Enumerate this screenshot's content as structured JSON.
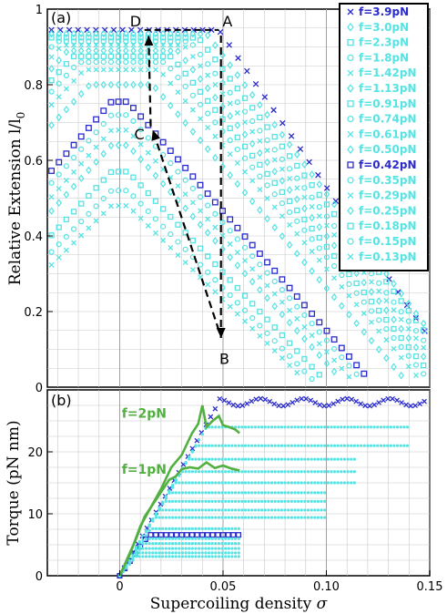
{
  "colors": {
    "highlight": "#2b2bcc",
    "cyan": "#55e3e3",
    "green": "#52b040",
    "grid": "#c8c8c8"
  },
  "chart_data": [
    {
      "type": "scatter",
      "panel_label": "(a)",
      "ylabel": "Relative Extension  l/l",
      "ylabel_sub": "0",
      "xlim": [
        -0.035,
        0.15
      ],
      "ylim": [
        0,
        1
      ],
      "y_ticks": [
        "0",
        "0.2",
        "0.4",
        "0.6",
        "0.8",
        "1"
      ],
      "y_tick_values": [
        0,
        0.2,
        0.4,
        0.6,
        0.8,
        1
      ],
      "legend_placement": "top-right",
      "grid": true,
      "legend": [
        {
          "label": "f=3.9pN",
          "marker": "x",
          "color": "#2b2bcc"
        },
        {
          "label": "f=3.0pN",
          "marker": "diamond",
          "color": "#55e3e3"
        },
        {
          "label": "f=2.3pN",
          "marker": "square",
          "color": "#55e3e3"
        },
        {
          "label": "f=1.8pN",
          "marker": "circle",
          "color": "#55e3e3"
        },
        {
          "label": "f=1.42pN",
          "marker": "x",
          "color": "#55e3e3"
        },
        {
          "label": "f=1.13pN",
          "marker": "diamond",
          "color": "#55e3e3"
        },
        {
          "label": "f=0.91pN",
          "marker": "square",
          "color": "#55e3e3"
        },
        {
          "label": "f=0.74pN",
          "marker": "circle",
          "color": "#55e3e3"
        },
        {
          "label": "f=0.61pN",
          "marker": "x",
          "color": "#55e3e3"
        },
        {
          "label": "f=0.50pN",
          "marker": "diamond",
          "color": "#55e3e3"
        },
        {
          "label": "f=0.42pN",
          "marker": "square",
          "color": "#2b2bcc"
        },
        {
          "label": "f=0.35pN",
          "marker": "circle",
          "color": "#55e3e3"
        },
        {
          "label": "f=0.29pN",
          "marker": "x",
          "color": "#55e3e3"
        },
        {
          "label": "f=0.25pN",
          "marker": "diamond",
          "color": "#55e3e3"
        },
        {
          "label": "f=0.18pN",
          "marker": "square",
          "color": "#55e3e3"
        },
        {
          "label": "f=0.15pN",
          "marker": "circle",
          "color": "#55e3e3"
        },
        {
          "label": "f=0.13pN",
          "marker": "x",
          "color": "#55e3e3"
        }
      ],
      "series": [
        {
          "name": "f=3.9pN",
          "peak": 0.945,
          "sigma_buckle": 0.048,
          "slope": 8.0,
          "width": 0.18
        },
        {
          "name": "f=3.0pN",
          "peak": 0.935,
          "sigma_buckle": 0.042,
          "slope": 7.3,
          "width": 0.14
        },
        {
          "name": "f=2.3pN",
          "peak": 0.925,
          "sigma_buckle": 0.038,
          "slope": 7.1,
          "width": 0.12
        },
        {
          "name": "f=1.8pN",
          "peak": 0.915,
          "sigma_buckle": 0.034,
          "slope": 7.0,
          "width": 0.1
        },
        {
          "name": "f=1.42pN",
          "peak": 0.905,
          "sigma_buckle": 0.031,
          "slope": 6.9,
          "width": 0.09
        },
        {
          "name": "f=1.13pN",
          "peak": 0.89,
          "sigma_buckle": 0.028,
          "slope": 6.8,
          "width": 0.08
        },
        {
          "name": "f=0.91pN",
          "peak": 0.875,
          "sigma_buckle": 0.025,
          "slope": 6.7,
          "width": 0.07
        },
        {
          "name": "f=0.74pN",
          "peak": 0.86,
          "sigma_buckle": 0.022,
          "slope": 6.6,
          "width": 0.06
        },
        {
          "name": "f=0.61pN",
          "peak": 0.84,
          "sigma_buckle": 0.019,
          "slope": 6.5,
          "width": 0.05
        },
        {
          "name": "f=0.50pN",
          "peak": 0.8,
          "sigma_buckle": 0.016,
          "slope": 6.4,
          "width": 0.043
        },
        {
          "name": "f=0.42pN",
          "peak": 0.755,
          "sigma_buckle": 0.0,
          "slope": 6.3,
          "width": 0.036
        },
        {
          "name": "f=0.35pN",
          "peak": 0.72,
          "sigma_buckle": 0.0,
          "slope": 6.2,
          "width": 0.032
        },
        {
          "name": "f=0.29pN",
          "peak": 0.68,
          "sigma_buckle": 0.0,
          "slope": 6.1,
          "width": 0.028
        },
        {
          "name": "f=0.25pN",
          "peak": 0.64,
          "sigma_buckle": 0.0,
          "slope": 6.0,
          "width": 0.025
        },
        {
          "name": "f=0.18pN",
          "peak": 0.57,
          "sigma_buckle": 0.0,
          "slope": 5.8,
          "width": 0.022
        },
        {
          "name": "f=0.15pN",
          "peak": 0.52,
          "sigma_buckle": 0.0,
          "slope": 5.6,
          "width": 0.02
        },
        {
          "name": "f=0.13pN",
          "peak": 0.48,
          "sigma_buckle": 0.0,
          "slope": 5.4,
          "width": 0.018
        }
      ],
      "annotations": [
        {
          "label": "A",
          "x": 0.048,
          "y": 0.945
        },
        {
          "label": "B",
          "x": 0.05,
          "y": 0.11
        },
        {
          "label": "C",
          "x": 0.015,
          "y": 0.67
        },
        {
          "label": "D",
          "x": 0.012,
          "y": 0.945
        }
      ],
      "path_D_to_A_top": [
        [
          0.012,
          0.945
        ],
        [
          0.048,
          0.945
        ]
      ],
      "arrows": [
        {
          "from": [
            0.049,
            0.93
          ],
          "to": [
            0.049,
            0.13
          ]
        },
        {
          "from": [
            0.048,
            0.15
          ],
          "to": [
            0.016,
            0.68
          ]
        },
        {
          "from": [
            0.015,
            0.69
          ],
          "to": [
            0.014,
            0.93
          ]
        }
      ]
    },
    {
      "type": "line",
      "panel_label": "(b)",
      "xlabel": "Supercoiling density",
      "xlabel_symbol": "σ",
      "ylabel": "Torque (pN nm)",
      "xlim": [
        -0.035,
        0.15
      ],
      "ylim": [
        0,
        30
      ],
      "x_ticks": [
        "0",
        "0.05",
        "0.10",
        "0.15"
      ],
      "x_tick_values": [
        0,
        0.05,
        0.1,
        0.15
      ],
      "y_ticks": [
        "0",
        "10",
        "20"
      ],
      "y_tick_values": [
        0,
        10,
        20
      ],
      "grid": true,
      "series_torque": [
        {
          "name": "f=3.9pN",
          "plateau": 28.0,
          "sigma_buckle": 0.048,
          "color": "#2b2bcc",
          "marker": "x"
        },
        {
          "name": "f=3.0pN",
          "plateau": 24.0,
          "sigma_buckle": 0.042,
          "color": "#55e3e3"
        },
        {
          "name": "f=2.3pN",
          "plateau": 21.0,
          "sigma_buckle": 0.037,
          "color": "#55e3e3"
        },
        {
          "name": "f=1.8pN",
          "plateau": 18.8,
          "sigma_buckle": 0.033,
          "color": "#55e3e3"
        },
        {
          "name": "f=1.42pN",
          "plateau": 16.8,
          "sigma_buckle": 0.03,
          "color": "#55e3e3"
        },
        {
          "name": "f=1.13pN",
          "plateau": 15.0,
          "sigma_buckle": 0.027,
          "color": "#55e3e3"
        },
        {
          "name": "f=0.91pN",
          "plateau": 13.4,
          "sigma_buckle": 0.024,
          "color": "#55e3e3"
        },
        {
          "name": "f=0.74pN",
          "plateau": 12.0,
          "sigma_buckle": 0.021,
          "color": "#55e3e3"
        },
        {
          "name": "f=0.61pN",
          "plateau": 10.6,
          "sigma_buckle": 0.019,
          "color": "#55e3e3"
        },
        {
          "name": "f=0.50pN",
          "plateau": 9.4,
          "sigma_buckle": 0.017,
          "color": "#55e3e3"
        },
        {
          "name": "f=0.42pN",
          "plateau": 6.6,
          "sigma_buckle": 0.014,
          "color": "#2b2bcc",
          "marker": "square"
        },
        {
          "name": "f=0.35pN",
          "plateau": 7.6,
          "sigma_buckle": 0.015,
          "color": "#55e3e3"
        },
        {
          "name": "f=0.29pN",
          "plateau": 6.0,
          "sigma_buckle": 0.013,
          "color": "#55e3e3"
        },
        {
          "name": "f=0.25pN",
          "plateau": 5.2,
          "sigma_buckle": 0.011,
          "color": "#55e3e3"
        },
        {
          "name": "f=0.18pN",
          "plateau": 4.4,
          "sigma_buckle": 0.01,
          "color": "#55e3e3"
        },
        {
          "name": "f=0.15pN",
          "plateau": 3.7,
          "sigma_buckle": 0.009,
          "color": "#55e3e3"
        },
        {
          "name": "f=0.13pN",
          "plateau": 3.1,
          "sigma_buckle": 0.008,
          "color": "#55e3e3"
        }
      ],
      "green_curves": [
        {
          "label": "f=2pN",
          "points": [
            [
              0,
              0
            ],
            [
              0.005,
              3.5
            ],
            [
              0.01,
              8
            ],
            [
              0.015,
              11
            ],
            [
              0.02,
              14
            ],
            [
              0.025,
              17.5
            ],
            [
              0.03,
              19.5
            ],
            [
              0.035,
              23
            ],
            [
              0.038,
              24.5
            ],
            [
              0.04,
              27.5
            ],
            [
              0.042,
              24
            ],
            [
              0.045,
              25
            ],
            [
              0.048,
              25.8
            ],
            [
              0.05,
              24.3
            ],
            [
              0.053,
              24
            ],
            [
              0.056,
              23.6
            ],
            [
              0.058,
              23
            ]
          ]
        },
        {
          "label": "f=1pN",
          "points": [
            [
              0,
              0
            ],
            [
              0.004,
              3
            ],
            [
              0.008,
              6
            ],
            [
              0.012,
              9.5
            ],
            [
              0.016,
              11.5
            ],
            [
              0.02,
              13.5
            ],
            [
              0.024,
              15.5
            ],
            [
              0.027,
              16
            ],
            [
              0.03,
              17.2
            ],
            [
              0.034,
              17.5
            ],
            [
              0.038,
              17.3
            ],
            [
              0.042,
              18.3
            ],
            [
              0.046,
              17.4
            ],
            [
              0.05,
              17.8
            ],
            [
              0.054,
              17.3
            ],
            [
              0.058,
              17
            ]
          ]
        }
      ]
    }
  ]
}
